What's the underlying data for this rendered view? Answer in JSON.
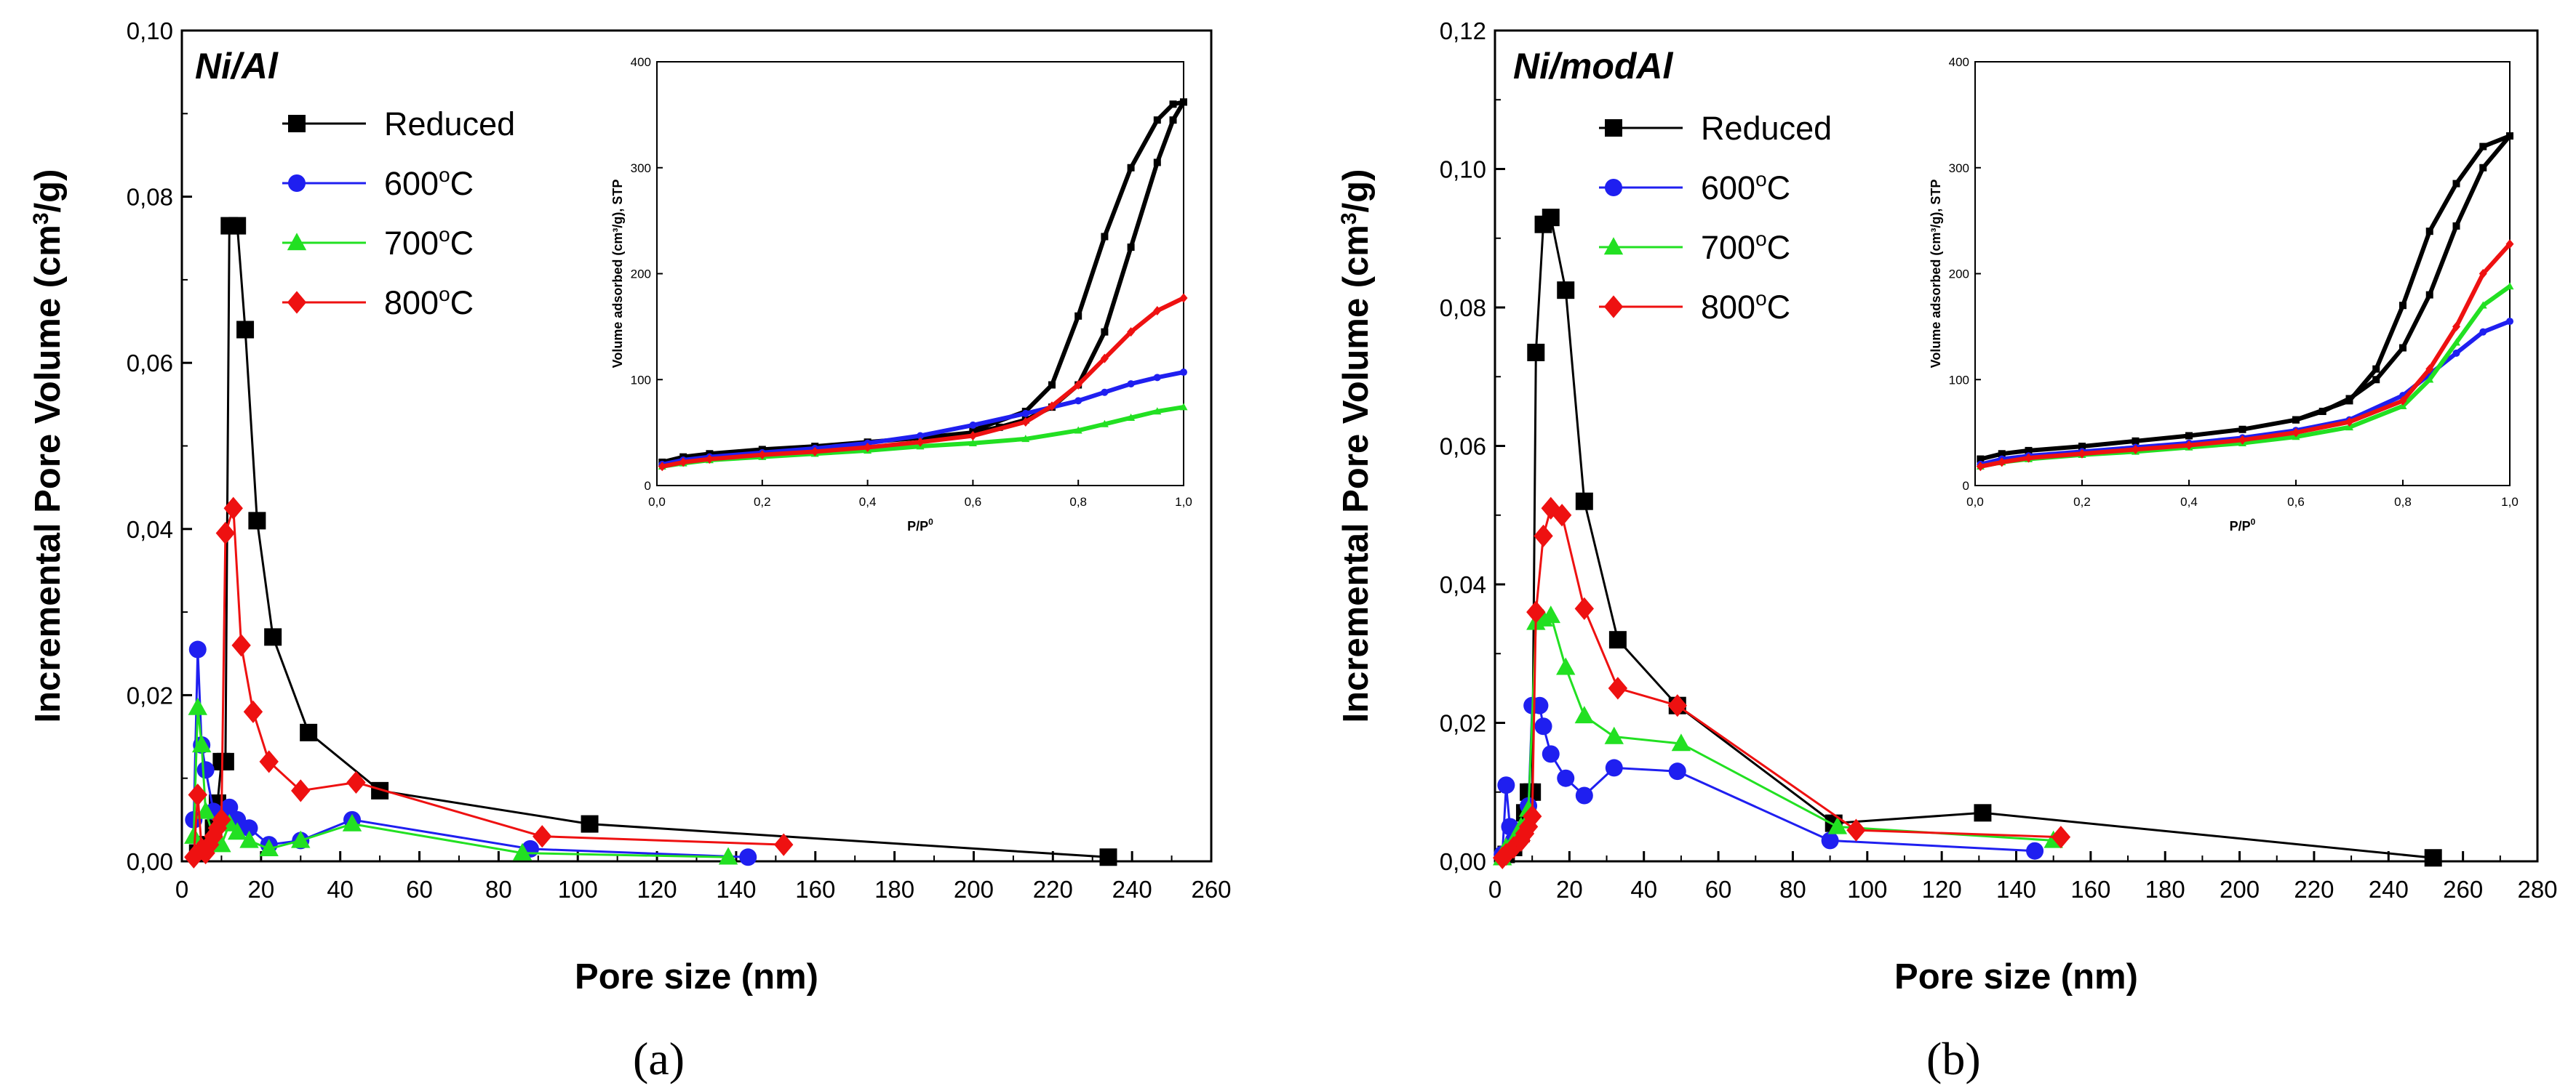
{
  "figure": {
    "captions": [
      "(a)",
      "(b)"
    ],
    "colors": {
      "Reduced": "#000000",
      "600°C": "#1f1ff0",
      "700°C": "#22e022",
      "800°C": "#ee1111"
    },
    "markers": {
      "Reduced": "square",
      "600°C": "circle",
      "700°C": "triangle",
      "800°C": "diamond"
    }
  },
  "chart_data": [
    {
      "type": "line",
      "panel_label": "(a)",
      "title": "Ni/Al",
      "xlabel": "Pore size (nm)",
      "ylabel_main": "Incremental Pore Volume (cm",
      "ylabel_sup": "3",
      "ylabel_tail": "/g)",
      "xlim": [
        0,
        260
      ],
      "ylim": [
        0,
        0.1
      ],
      "xticks": [
        0,
        20,
        40,
        60,
        80,
        100,
        120,
        140,
        160,
        180,
        200,
        220,
        240,
        260
      ],
      "xtick_labels": [
        "0",
        "20",
        "40",
        "60",
        "80",
        "100",
        "120",
        "140",
        "160",
        "180",
        "200",
        "220",
        "240",
        "260"
      ],
      "yticks": [
        0,
        0.02,
        0.04,
        0.06,
        0.08,
        0.1
      ],
      "ytick_labels": [
        "0,00",
        "0,02",
        "0,04",
        "0,06",
        "0,08",
        "0,10"
      ],
      "legend_location": "top-left",
      "legend": [
        {
          "label": "Reduced",
          "sup": ""
        },
        {
          "label": "600",
          "sup": "o",
          "tail": "C"
        },
        {
          "label": "700",
          "sup": "o",
          "tail": "C"
        },
        {
          "label": "800",
          "sup": "o",
          "tail": "C"
        }
      ],
      "series": [
        {
          "name": "Reduced",
          "x": [
            4,
            6,
            8,
            9,
            10,
            11,
            12,
            14,
            16,
            19,
            23,
            32,
            50,
            103,
            234
          ],
          "y": [
            0.001,
            0.002,
            0.004,
            0.007,
            0.012,
            0.012,
            0.0765,
            0.0765,
            0.064,
            0.041,
            0.027,
            0.0155,
            0.0085,
            0.0045,
            0.0005
          ]
        },
        {
          "name": "600°C",
          "x": [
            3,
            4,
            5,
            6,
            8,
            10,
            12,
            14,
            17,
            22,
            30,
            43,
            88,
            143
          ],
          "y": [
            0.005,
            0.0255,
            0.014,
            0.011,
            0.006,
            0.0055,
            0.0065,
            0.005,
            0.004,
            0.002,
            0.0025,
            0.005,
            0.0015,
            0.0005
          ]
        },
        {
          "name": "700°C",
          "x": [
            3,
            4,
            5,
            6,
            8,
            10,
            12,
            14,
            17,
            22,
            30,
            43,
            86,
            138
          ],
          "y": [
            0.003,
            0.0185,
            0.014,
            0.006,
            0.003,
            0.002,
            0.0045,
            0.0035,
            0.0025,
            0.0015,
            0.0025,
            0.0045,
            0.001,
            0.0005
          ]
        },
        {
          "name": "800°C",
          "x": [
            3,
            4,
            5,
            6,
            7,
            8,
            9,
            10,
            11,
            13,
            15,
            18,
            22,
            30,
            44,
            91,
            152
          ],
          "y": [
            0.0005,
            0.008,
            0.0015,
            0.001,
            0.002,
            0.003,
            0.004,
            0.005,
            0.0395,
            0.0425,
            0.026,
            0.018,
            0.012,
            0.0085,
            0.0095,
            0.003,
            0.002
          ]
        }
      ],
      "inset": {
        "type": "line",
        "xlabel": "P/P",
        "xlabel_sup": "0",
        "ylabel": "Volume adsorbed (cm³/g), STP",
        "xlim": [
          0,
          1
        ],
        "ylim": [
          0,
          400
        ],
        "xticks": [
          0,
          0.2,
          0.4,
          0.6,
          0.8,
          1.0
        ],
        "xtick_labels": [
          "0,0",
          "0,2",
          "0,4",
          "0,6",
          "0,8",
          "1,0"
        ],
        "yticks": [
          0,
          100,
          200,
          300,
          400
        ],
        "ytick_labels": [
          "0",
          "100",
          "200",
          "300",
          "400"
        ],
        "series": [
          {
            "name": "Reduced",
            "x": [
              0.01,
              0.05,
              0.1,
              0.2,
              0.3,
              0.4,
              0.5,
              0.6,
              0.65,
              0.7,
              0.75,
              0.8,
              0.85,
              0.9,
              0.95,
              0.98,
              1.0
            ],
            "y": [
              22,
              27,
              30,
              34,
              37,
              41,
              45,
              50,
              55,
              62,
              74,
              95,
              145,
              225,
              305,
              345,
              362
            ]
          },
          {
            "name": "Reduced (desorption)",
            "x": [
              1.0,
              0.98,
              0.95,
              0.9,
              0.85,
              0.8,
              0.75,
              0.7,
              0.6
            ],
            "y": [
              362,
              360,
              345,
              300,
              235,
              160,
              95,
              70,
              52
            ]
          },
          {
            "name": "600°C",
            "x": [
              0.01,
              0.05,
              0.1,
              0.2,
              0.3,
              0.4,
              0.5,
              0.6,
              0.7,
              0.8,
              0.85,
              0.9,
              0.95,
              1.0
            ],
            "y": [
              20,
              24,
              27,
              31,
              35,
              40,
              47,
              57,
              68,
              80,
              88,
              96,
              102,
              107
            ]
          },
          {
            "name": "700°C",
            "x": [
              0.01,
              0.05,
              0.1,
              0.2,
              0.3,
              0.4,
              0.5,
              0.6,
              0.7,
              0.8,
              0.85,
              0.9,
              0.95,
              1.0
            ],
            "y": [
              18,
              21,
              24,
              27,
              30,
              33,
              37,
              40,
              44,
              52,
              58,
              64,
              70,
              74
            ]
          },
          {
            "name": "800°C",
            "x": [
              0.01,
              0.05,
              0.1,
              0.2,
              0.3,
              0.4,
              0.5,
              0.6,
              0.7,
              0.75,
              0.8,
              0.85,
              0.9,
              0.95,
              1.0
            ],
            "y": [
              18,
              22,
              25,
              29,
              32,
              36,
              41,
              47,
              60,
              75,
              95,
              120,
              145,
              165,
              177
            ]
          }
        ]
      }
    },
    {
      "type": "line",
      "panel_label": "(b)",
      "title": "Ni/modAl",
      "xlabel": "Pore size (nm)",
      "ylabel_main": "Incremental Pore Volume (cm",
      "ylabel_sup": "3",
      "ylabel_tail": "/g)",
      "xlim": [
        0,
        280
      ],
      "ylim": [
        0,
        0.12
      ],
      "xticks": [
        0,
        20,
        40,
        60,
        80,
        100,
        120,
        140,
        160,
        180,
        200,
        220,
        240,
        260,
        280
      ],
      "xtick_labels": [
        "0",
        "20",
        "40",
        "60",
        "80",
        "100",
        "120",
        "140",
        "160",
        "180",
        "200",
        "220",
        "240",
        "260",
        "280"
      ],
      "yticks": [
        0,
        0.02,
        0.04,
        0.06,
        0.08,
        0.1,
        0.12
      ],
      "ytick_labels": [
        "0,00",
        "0,02",
        "0,04",
        "0,06",
        "0,08",
        "0,10",
        "0,12"
      ],
      "legend_location": "top-left",
      "legend": [
        {
          "label": "Reduced",
          "sup": ""
        },
        {
          "label": "600",
          "sup": "o",
          "tail": "C"
        },
        {
          "label": "700",
          "sup": "o",
          "tail": "C"
        },
        {
          "label": "800",
          "sup": "o",
          "tail": "C"
        }
      ],
      "series": [
        {
          "name": "Reduced",
          "x": [
            3,
            5,
            7,
            8,
            9,
            10,
            11,
            13,
            15,
            19,
            24,
            33,
            49,
            91,
            131,
            252
          ],
          "y": [
            0.001,
            0.002,
            0.004,
            0.007,
            0.01,
            0.01,
            0.0735,
            0.092,
            0.093,
            0.0825,
            0.052,
            0.032,
            0.0225,
            0.0055,
            0.007,
            0.0005
          ]
        },
        {
          "name": "600°C",
          "x": [
            2,
            3,
            4,
            5,
            7,
            9,
            10,
            12,
            13,
            15,
            19,
            24,
            32,
            49,
            90,
            145
          ],
          "y": [
            0.001,
            0.011,
            0.005,
            0.003,
            0.004,
            0.008,
            0.0225,
            0.0225,
            0.0195,
            0.0155,
            0.012,
            0.0095,
            0.0135,
            0.013,
            0.003,
            0.0015
          ]
        },
        {
          "name": "700°C",
          "x": [
            2,
            3,
            5,
            7,
            9,
            11,
            13,
            15,
            19,
            24,
            32,
            50,
            92,
            150
          ],
          "y": [
            0.0005,
            0.002,
            0.003,
            0.005,
            0.0075,
            0.0345,
            0.035,
            0.0355,
            0.028,
            0.021,
            0.018,
            0.017,
            0.005,
            0.003
          ]
        },
        {
          "name": "800°C",
          "x": [
            2,
            3,
            5,
            7,
            8,
            9,
            10,
            11,
            13,
            15,
            18,
            24,
            33,
            49,
            97,
            152
          ],
          "y": [
            0.0005,
            0.001,
            0.002,
            0.003,
            0.004,
            0.005,
            0.0065,
            0.036,
            0.047,
            0.051,
            0.05,
            0.0365,
            0.025,
            0.0225,
            0.0045,
            0.0035
          ]
        }
      ],
      "inset": {
        "type": "line",
        "xlabel": "P/P",
        "xlabel_sup": "0",
        "ylabel": "Volume adsorbed (cm³/g), STP",
        "xlim": [
          0,
          1
        ],
        "ylim": [
          0,
          400
        ],
        "xticks": [
          0,
          0.2,
          0.4,
          0.6,
          0.8,
          1.0
        ],
        "xtick_labels": [
          "0,0",
          "0,2",
          "0,4",
          "0,6",
          "0,8",
          "1,0"
        ],
        "yticks": [
          0,
          100,
          200,
          300,
          400
        ],
        "ytick_labels": [
          "0",
          "100",
          "200",
          "300",
          "400"
        ],
        "series": [
          {
            "name": "Reduced",
            "x": [
              0.01,
              0.05,
              0.1,
              0.2,
              0.3,
              0.4,
              0.5,
              0.6,
              0.65,
              0.7,
              0.75,
              0.8,
              0.85,
              0.9,
              0.95,
              1.0
            ],
            "y": [
              25,
              30,
              33,
              37,
              42,
              47,
              53,
              62,
              70,
              82,
              100,
              130,
              180,
              245,
              300,
              330
            ]
          },
          {
            "name": "Reduced (desorption)",
            "x": [
              1.0,
              0.95,
              0.9,
              0.85,
              0.8,
              0.75,
              0.7,
              0.6
            ],
            "y": [
              330,
              320,
              285,
              240,
              170,
              110,
              80,
              62
            ]
          },
          {
            "name": "600°C",
            "x": [
              0.01,
              0.05,
              0.1,
              0.2,
              0.3,
              0.4,
              0.5,
              0.6,
              0.7,
              0.8,
              0.85,
              0.9,
              0.95,
              1.0
            ],
            "y": [
              20,
              25,
              28,
              32,
              36,
              40,
              45,
              52,
              62,
              85,
              105,
              125,
              145,
              155
            ]
          },
          {
            "name": "700°C",
            "x": [
              0.01,
              0.05,
              0.1,
              0.2,
              0.3,
              0.4,
              0.5,
              0.6,
              0.7,
              0.8,
              0.85,
              0.9,
              0.95,
              1.0
            ],
            "y": [
              18,
              22,
              25,
              29,
              32,
              36,
              40,
              46,
              55,
              75,
              100,
              135,
              170,
              188
            ]
          },
          {
            "name": "800°C",
            "x": [
              0.01,
              0.05,
              0.1,
              0.2,
              0.3,
              0.4,
              0.5,
              0.6,
              0.7,
              0.8,
              0.85,
              0.9,
              0.95,
              1.0
            ],
            "y": [
              18,
              22,
              26,
              30,
              34,
              38,
              43,
              50,
              60,
              80,
              110,
              150,
              200,
              228
            ]
          }
        ]
      }
    }
  ]
}
